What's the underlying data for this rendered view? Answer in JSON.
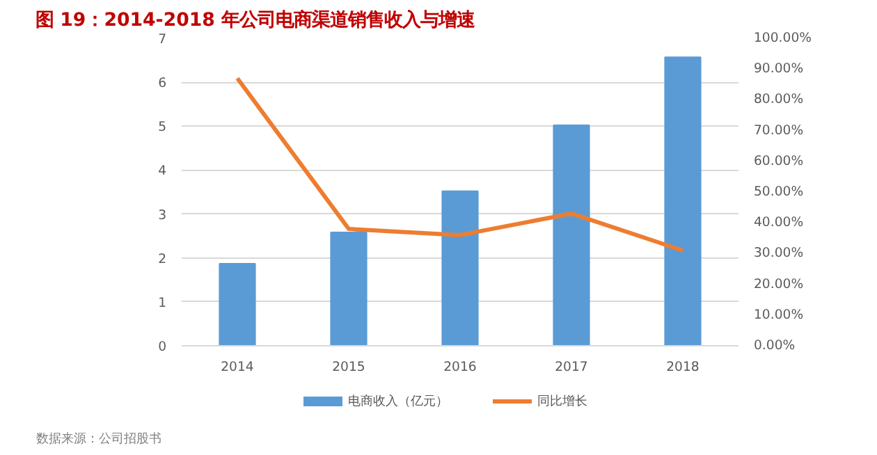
{
  "chart_data": {
    "type": "bar",
    "title": "图 19：2014-2018 年公司电商渠道销售收入与增速",
    "categories": [
      "2014",
      "2015",
      "2016",
      "2017",
      "2018"
    ],
    "series": [
      {
        "name": "电商收入（亿元）",
        "color": "#5b9bd5",
        "values": [
          1.87,
          2.58,
          3.52,
          5.02,
          6.57
        ]
      },
      {
        "name": "同比增长",
        "type": "line",
        "color": "#ed7d31",
        "axis": "y2",
        "values": [
          87,
          38,
          36,
          43,
          31
        ]
      }
    ],
    "ylim": [
      0,
      7
    ],
    "yticks": [
      0,
      1,
      2,
      3,
      4,
      5,
      6,
      7
    ],
    "y2lim": [
      0,
      100
    ],
    "y2ticks": [
      {
        "value": 0,
        "label": "0.00%"
      },
      {
        "value": 10,
        "label": "10.00%"
      },
      {
        "value": 20,
        "label": "20.00%"
      },
      {
        "value": 30,
        "label": "30.00%"
      },
      {
        "value": 40,
        "label": "40.00%"
      },
      {
        "value": 50,
        "label": "50.00%"
      },
      {
        "value": 60,
        "label": "60.00%"
      },
      {
        "value": 70,
        "label": "70.00%"
      },
      {
        "value": 80,
        "label": "80.00%"
      },
      {
        "value": 90,
        "label": "90.00%"
      },
      {
        "value": 100,
        "label": "100.00%"
      }
    ],
    "grid": "y",
    "legend": "bottom",
    "marker": "none",
    "line_style": "solid",
    "annotations": [
      "数据来源：公司招股书"
    ]
  }
}
